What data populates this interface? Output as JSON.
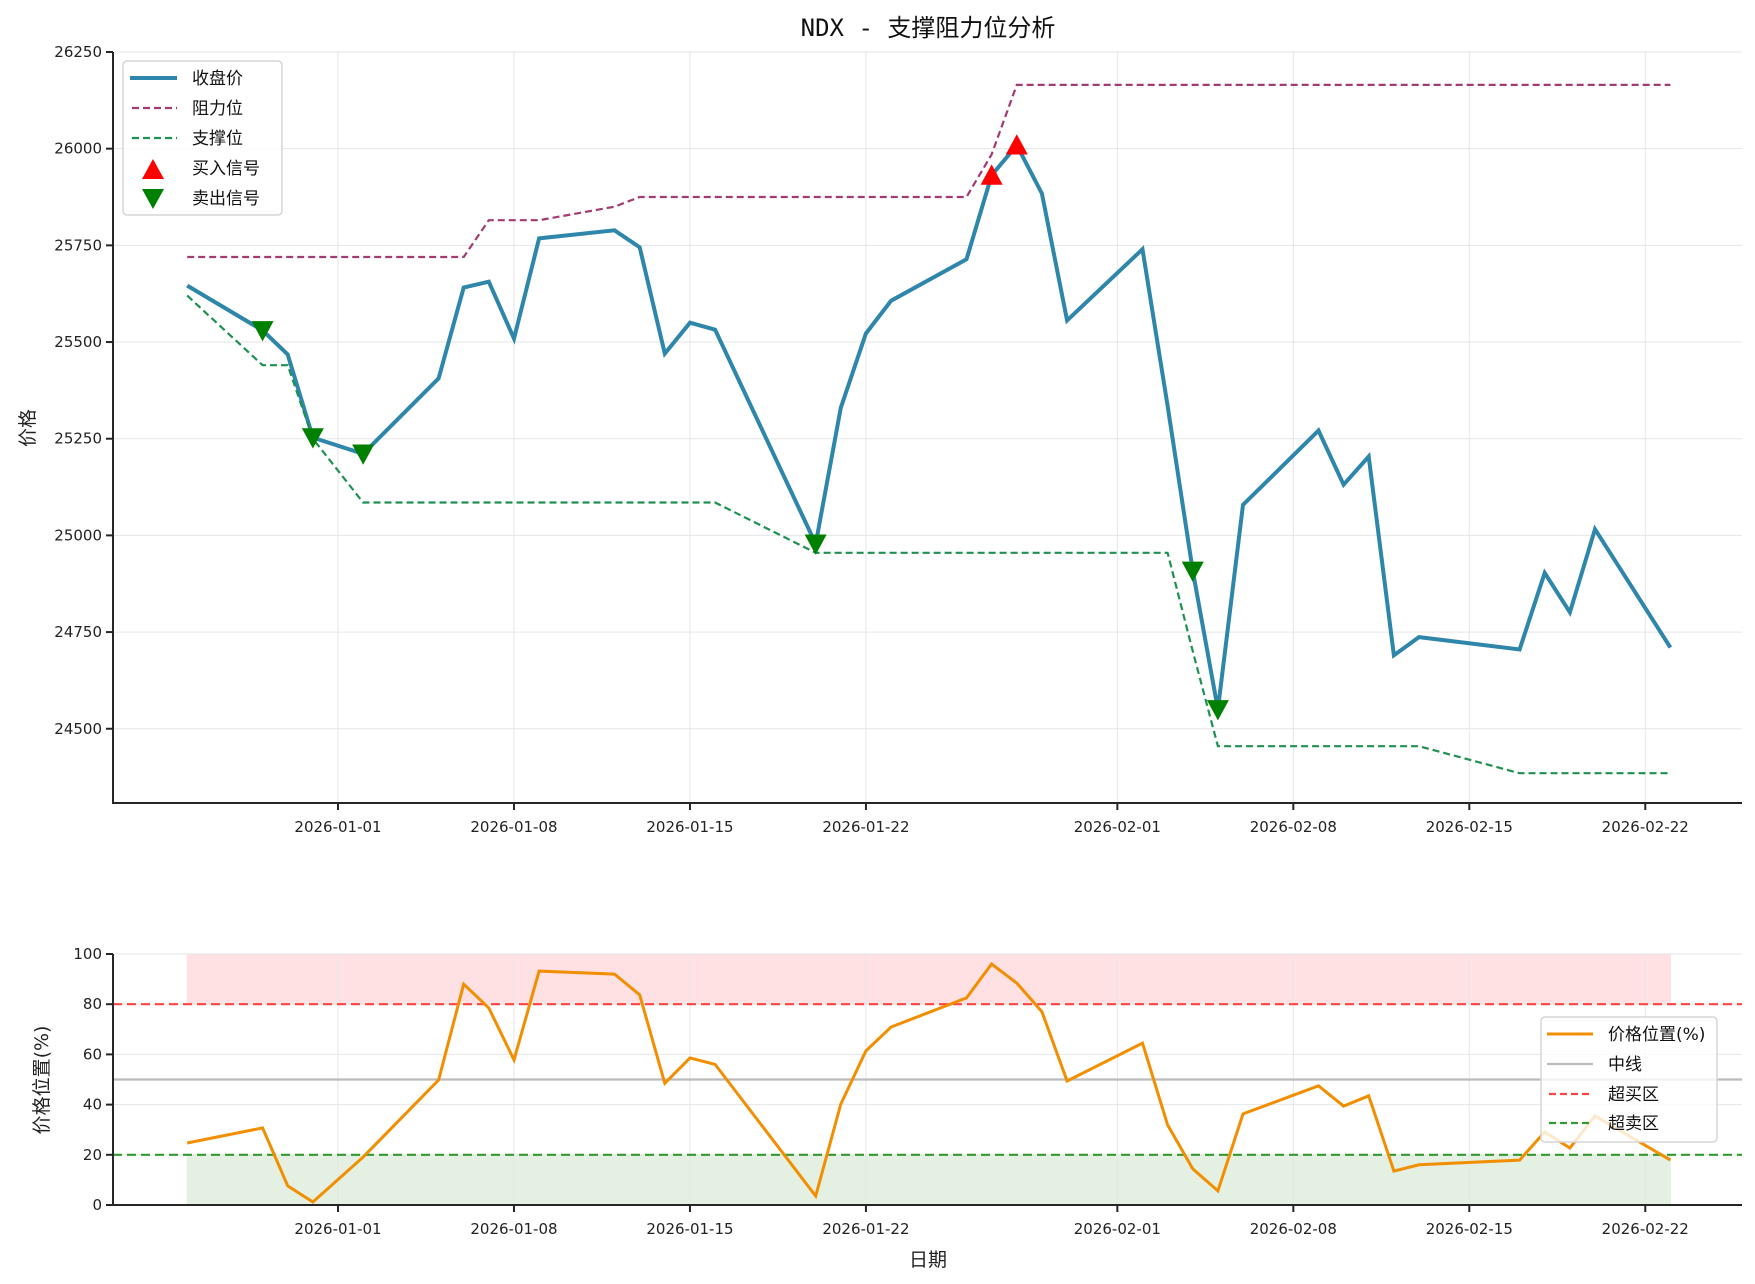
{
  "figure": {
    "title": "NDX - 支撑阻力位分析"
  },
  "chart_data": [
    {
      "type": "line",
      "title": "NDX - 支撑阻力位分析",
      "xlabel": "",
      "ylabel": "价格",
      "ylim": [
        24308,
        26250
      ],
      "yticks": [
        24500,
        24750,
        25000,
        25250,
        25500,
        25750,
        26000,
        26250
      ],
      "xticks": [
        "2026-01-01",
        "2026-01-08",
        "2026-01-15",
        "2026-01-22",
        "2026-02-01",
        "2026-02-08",
        "2026-02-15",
        "2026-02-22"
      ],
      "grid": true,
      "legend_position": "upper left",
      "x": [
        "2025-12-26",
        "2025-12-29",
        "2025-12-30",
        "2025-12-31",
        "2026-01-02",
        "2026-01-05",
        "2026-01-06",
        "2026-01-07",
        "2026-01-08",
        "2026-01-09",
        "2026-01-12",
        "2026-01-13",
        "2026-01-14",
        "2026-01-15",
        "2026-01-16",
        "2026-01-20",
        "2026-01-21",
        "2026-01-22",
        "2026-01-23",
        "2026-01-26",
        "2026-01-27",
        "2026-01-28",
        "2026-01-29",
        "2026-01-30",
        "2026-02-02",
        "2026-02-03",
        "2026-02-04",
        "2026-02-05",
        "2026-02-06",
        "2026-02-09",
        "2026-02-10",
        "2026-02-11",
        "2026-02-12",
        "2026-02-13",
        "2026-02-17",
        "2026-02-18",
        "2026-02-19",
        "2026-02-20",
        "2026-02-23"
      ],
      "series": [
        {
          "name": "收盘价",
          "style": "solid",
          "color": "#2E86AB",
          "values": [
            25646,
            25530,
            25468,
            25253,
            25211,
            25406,
            25641,
            25656,
            25509,
            25768,
            25789,
            25745,
            25470,
            25550,
            25532,
            24978,
            25330,
            25522,
            25607,
            25714,
            25931,
            26009,
            25884,
            25556,
            25740,
            25335,
            24908,
            24550,
            25079,
            25271,
            25131,
            25204,
            24690,
            24737,
            24705,
            24903,
            24801,
            25016,
            24710
          ]
        },
        {
          "name": "阻力位",
          "style": "dashed",
          "color": "#A23B72",
          "values": [
            25720,
            25720,
            25720,
            25720,
            25720,
            25720,
            25720,
            25815,
            25815,
            25815,
            25850,
            25875,
            25875,
            25875,
            25875,
            25875,
            25875,
            25875,
            25875,
            25875,
            25985,
            26165,
            26165,
            26165,
            26165,
            26165,
            26165,
            26165,
            26165,
            26165,
            26165,
            26165,
            26165,
            26165,
            26165,
            26165,
            26165,
            26165,
            26165
          ]
        },
        {
          "name": "支撑位",
          "style": "dashed",
          "color": "#1E9150",
          "values": [
            25620,
            25440,
            25440,
            25250,
            25085,
            25085,
            25085,
            25085,
            25085,
            25085,
            25085,
            25085,
            25085,
            25085,
            25085,
            24955,
            24955,
            24955,
            24955,
            24955,
            24955,
            24955,
            24955,
            24955,
            24955,
            24955,
            24700,
            24455,
            24455,
            24455,
            24455,
            24455,
            24455,
            24455,
            24385,
            24385,
            24385,
            24385,
            24385
          ]
        }
      ],
      "markers": [
        {
          "name": "买入信号",
          "shape": "triangle-up",
          "color": "#FF0000",
          "points": [
            {
              "x": "2026-01-27",
              "y": 25931
            },
            {
              "x": "2026-01-28",
              "y": 26009
            }
          ]
        },
        {
          "name": "卖出信号",
          "shape": "triangle-down",
          "color": "#008000",
          "points": [
            {
              "x": "2025-12-29",
              "y": 25530
            },
            {
              "x": "2025-12-31",
              "y": 25253
            },
            {
              "x": "2026-01-02",
              "y": 25211
            },
            {
              "x": "2026-01-20",
              "y": 24978
            },
            {
              "x": "2026-02-04",
              "y": 24908
            },
            {
              "x": "2026-02-05",
              "y": 24550
            }
          ]
        }
      ]
    },
    {
      "type": "line",
      "title": "",
      "xlabel": "日期",
      "ylabel": "价格位置(%)",
      "ylim": [
        0,
        100
      ],
      "yticks": [
        0,
        20,
        40,
        60,
        80,
        100
      ],
      "xticks": [
        "2026-01-01",
        "2026-01-08",
        "2026-01-15",
        "2026-01-22",
        "2026-02-01",
        "2026-02-08",
        "2026-02-15",
        "2026-02-22"
      ],
      "grid": true,
      "legend_position": "center right",
      "x": [
        "2025-12-26",
        "2025-12-29",
        "2025-12-30",
        "2025-12-31",
        "2026-01-02",
        "2026-01-05",
        "2026-01-06",
        "2026-01-07",
        "2026-01-08",
        "2026-01-09",
        "2026-01-12",
        "2026-01-13",
        "2026-01-14",
        "2026-01-15",
        "2026-01-16",
        "2026-01-20",
        "2026-01-21",
        "2026-01-22",
        "2026-01-23",
        "2026-01-26",
        "2026-01-27",
        "2026-01-28",
        "2026-01-29",
        "2026-01-30",
        "2026-02-02",
        "2026-02-03",
        "2026-02-04",
        "2026-02-05",
        "2026-02-06",
        "2026-02-09",
        "2026-02-10",
        "2026-02-11",
        "2026-02-12",
        "2026-02-13",
        "2026-02-17",
        "2026-02-18",
        "2026-02-19",
        "2026-02-20",
        "2026-02-23"
      ],
      "series": [
        {
          "name": "价格位置(%)",
          "style": "solid",
          "color": "#F18F01",
          "values": [
            24.7,
            30.7,
            7.6,
            1.2,
            19.1,
            49.8,
            88.0,
            78.5,
            57.8,
            93.2,
            92.0,
            83.7,
            48.5,
            58.6,
            56.0,
            3.6,
            40.2,
            61.4,
            70.9,
            82.5,
            96.0,
            88.4,
            77.0,
            49.4,
            64.5,
            31.9,
            14.4,
            5.6,
            36.3,
            47.5,
            39.4,
            43.5,
            13.5,
            16.0,
            17.9,
            29.1,
            22.7,
            35.5,
            17.9
          ]
        }
      ],
      "reference_lines": [
        {
          "name": "中线",
          "y": 50,
          "style": "solid",
          "color": "#BBBBBB"
        },
        {
          "name": "超买区",
          "y": 80,
          "style": "dashed",
          "color": "#FF4444"
        },
        {
          "name": "超卖区",
          "y": 20,
          "style": "dashed",
          "color": "#339933"
        }
      ],
      "bands": [
        {
          "from": 80,
          "to": 100,
          "color": "#FFE0E3"
        },
        {
          "from": 0,
          "to": 20,
          "color": "#E4F0E1"
        }
      ]
    }
  ]
}
